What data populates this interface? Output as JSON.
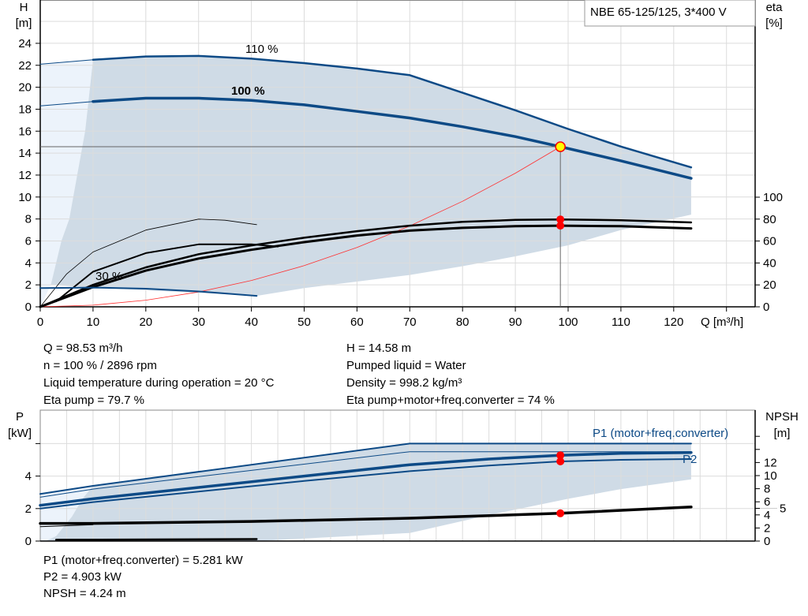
{
  "chart_data": [
    {
      "type": "line",
      "title": "NBE 65-125/125, 3*400 V",
      "xlabel": "Q [m³/h]",
      "ylabel": "H [m]",
      "y2label": "eta [%]",
      "xlim": [
        0,
        135
      ],
      "ylim": [
        0,
        26
      ],
      "y2lim": [
        0,
        187
      ],
      "x_ticks": [
        "0",
        "10",
        "20",
        "30",
        "40",
        "50",
        "60",
        "70",
        "80",
        "90",
        "100",
        "110",
        "120"
      ],
      "y_ticks": [
        "0",
        "2",
        "4",
        "6",
        "8",
        "10",
        "12",
        "14",
        "16",
        "18",
        "20",
        "22",
        "24"
      ],
      "y2_ticks": [
        "0",
        "20",
        "40",
        "60",
        "80",
        "100"
      ],
      "grid": true,
      "curve_labels": {
        "speed_110": "110 %",
        "speed_100": "100 %",
        "speed_30": "30 %"
      },
      "head_110": [
        [
          10,
          22.5
        ],
        [
          20,
          22.8
        ],
        [
          30,
          22.85
        ],
        [
          40,
          22.6
        ],
        [
          50,
          22.2
        ],
        [
          60,
          21.7
        ],
        [
          70,
          21.1
        ],
        [
          80,
          19.5
        ],
        [
          90,
          17.9
        ],
        [
          100,
          16.2
        ],
        [
          110,
          14.6
        ],
        [
          123.3,
          12.7
        ]
      ],
      "head_110_ext": [
        [
          0,
          22.1
        ],
        [
          10,
          22.5
        ]
      ],
      "head_100": [
        [
          10,
          18.7
        ],
        [
          20,
          19.0
        ],
        [
          30,
          19.0
        ],
        [
          40,
          18.8
        ],
        [
          50,
          18.4
        ],
        [
          60,
          17.8
        ],
        [
          70,
          17.2
        ],
        [
          80,
          16.4
        ],
        [
          90,
          15.5
        ],
        [
          98.53,
          14.58
        ],
        [
          110,
          13.3
        ],
        [
          123.3,
          11.7
        ]
      ],
      "head_100_ext": [
        [
          0,
          18.3
        ],
        [
          10,
          18.7
        ]
      ],
      "head_30": [
        [
          0,
          1.7
        ],
        [
          10,
          1.75
        ],
        [
          20,
          1.65
        ],
        [
          30,
          1.4
        ],
        [
          41,
          1.0
        ]
      ],
      "operating_range_lower": [
        [
          123.3,
          8.4
        ],
        [
          110,
          7.0
        ],
        [
          100,
          5.6
        ],
        [
          90,
          4.6
        ],
        [
          80,
          3.7
        ],
        [
          70,
          2.9
        ],
        [
          60,
          2.3
        ],
        [
          50,
          1.7
        ],
        [
          41,
          1.0
        ]
      ],
      "operating_range_left": [
        [
          0,
          0
        ],
        [
          2,
          2
        ],
        [
          4,
          6
        ],
        [
          5.5,
          8
        ],
        [
          7,
          12
        ],
        [
          8.5,
          16
        ],
        [
          10,
          22.5
        ]
      ],
      "system_curve": [
        [
          0,
          0
        ],
        [
          10,
          0.15
        ],
        [
          20,
          0.6
        ],
        [
          30,
          1.35
        ],
        [
          40,
          2.4
        ],
        [
          50,
          3.75
        ],
        [
          60,
          5.4
        ],
        [
          70,
          7.36
        ],
        [
          80,
          9.61
        ],
        [
          90,
          12.17
        ],
        [
          98.53,
          14.58
        ]
      ],
      "eta_pump_100": [
        [
          0,
          0
        ],
        [
          10,
          20
        ],
        [
          20,
          36
        ],
        [
          30,
          48
        ],
        [
          40,
          56
        ],
        [
          50,
          63
        ],
        [
          60,
          69
        ],
        [
          70,
          74
        ],
        [
          80,
          77.5
        ],
        [
          90,
          79.3
        ],
        [
          98.53,
          79.7
        ],
        [
          110,
          79
        ],
        [
          123.3,
          77
        ]
      ],
      "eta_total_100": [
        [
          0,
          0
        ],
        [
          10,
          18
        ],
        [
          20,
          33
        ],
        [
          30,
          44
        ],
        [
          40,
          52
        ],
        [
          50,
          59
        ],
        [
          60,
          65
        ],
        [
          70,
          69.5
        ],
        [
          80,
          72
        ],
        [
          90,
          73.5
        ],
        [
          98.53,
          74
        ],
        [
          110,
          73.5
        ],
        [
          123.3,
          71.5
        ]
      ],
      "eta_pump_30": [
        [
          0,
          0
        ],
        [
          5,
          30
        ],
        [
          10,
          50
        ],
        [
          20,
          70
        ],
        [
          30,
          80
        ],
        [
          35,
          79
        ],
        [
          41,
          75
        ]
      ],
      "eta_total_30": [
        [
          3,
          5
        ],
        [
          10,
          32
        ],
        [
          20,
          49
        ],
        [
          30,
          57
        ],
        [
          40,
          57
        ],
        [
          45,
          55
        ]
      ],
      "duty_point": {
        "Q": 98.53,
        "H": 14.58,
        "eta_pump": 79.7,
        "eta_total": 74
      }
    },
    {
      "type": "line",
      "ylabel": "P [kW]",
      "y2label": "NPSH [m]",
      "xlim": [
        0,
        135
      ],
      "ylim": [
        0,
        8
      ],
      "y2_ticks": [
        "0",
        "2",
        "4",
        "5",
        "6",
        "8",
        "10",
        "12"
      ],
      "y_ticks": [
        "0",
        "2",
        "4"
      ],
      "grid": true,
      "series_labels": {
        "p1": "P1 (motor+freq.converter)",
        "p2": "P2"
      },
      "p1_110": [
        [
          0,
          2.9
        ],
        [
          10,
          3.4
        ],
        [
          70,
          6.0
        ],
        [
          123.3,
          6.0
        ]
      ],
      "p2_110": [
        [
          0,
          2.7
        ],
        [
          10,
          3.2
        ],
        [
          70,
          5.5
        ],
        [
          123.3,
          5.5
        ]
      ],
      "p1_100": [
        [
          0,
          2.2
        ],
        [
          10,
          2.6
        ],
        [
          30,
          3.3
        ],
        [
          50,
          4.0
        ],
        [
          70,
          4.7
        ],
        [
          85,
          5.05
        ],
        [
          98.53,
          5.281
        ],
        [
          110,
          5.4
        ],
        [
          123.3,
          5.45
        ]
      ],
      "p2_100": [
        [
          0,
          2.0
        ],
        [
          10,
          2.4
        ],
        [
          30,
          3.05
        ],
        [
          50,
          3.7
        ],
        [
          70,
          4.3
        ],
        [
          85,
          4.65
        ],
        [
          98.53,
          4.903
        ],
        [
          110,
          5.0
        ],
        [
          123.3,
          5.05
        ]
      ],
      "p_30": [
        [
          3,
          0.08
        ],
        [
          41,
          0.12
        ]
      ],
      "npsh": [
        [
          0,
          2.7
        ],
        [
          10,
          2.7
        ],
        [
          40,
          3.0
        ],
        [
          70,
          3.5
        ],
        [
          98.53,
          4.24
        ],
        [
          123.3,
          5.2
        ]
      ],
      "npsh_ext": [
        [
          0,
          2.2
        ],
        [
          10,
          2.5
        ]
      ],
      "operating_range_lower": [
        [
          123.3,
          3.8
        ],
        [
          110,
          3.2
        ],
        [
          100,
          2.6
        ],
        [
          85,
          1.6
        ],
        [
          70,
          0.5
        ],
        [
          41,
          0.0
        ]
      ],
      "operating_range_left": [
        [
          1,
          0
        ],
        [
          3,
          0.3
        ],
        [
          6,
          1.5
        ],
        [
          8,
          2.6
        ],
        [
          10,
          3.4
        ]
      ],
      "duty_point": {
        "P1": 5.281,
        "P2": 4.903,
        "NPSH": 4.24
      }
    }
  ],
  "axes": {
    "h_unit_1": "H",
    "h_unit_2": "[m]",
    "eta_unit_1": "eta",
    "eta_unit_2": "[%]",
    "q_label": "Q [m³/h]",
    "p_unit_1": "P",
    "p_unit_2": "[kW]",
    "npsh_unit_1": "NPSH",
    "npsh_unit_2": "[m]"
  },
  "legend_box": "NBE 65-125/125, 3*400 V",
  "results_top": {
    "left": [
      "Q = 98.53 m³/h",
      "n = 100 % / 2896 rpm",
      "Liquid temperature during operation = 20 °C",
      "Eta pump = 79.7 %"
    ],
    "right": [
      "H = 14.58 m",
      "Pumped liquid = Water",
      "Density = 998.2 kg/m³",
      "Eta pump+motor+freq.converter = 74 %"
    ]
  },
  "results_bottom": [
    "P1 (motor+freq.converter) = 5.281 kW",
    "P2 = 4.903 kW",
    "NPSH = 4.24 m"
  ],
  "colors": {
    "curve_blue": "#0d4a86",
    "range_fill": "#cfdbe6",
    "range_fill_light": "#ecf3fb",
    "duty_red": "#ff0000",
    "duty_yellow": "#ffff00",
    "grid": "#dcdcdc"
  }
}
